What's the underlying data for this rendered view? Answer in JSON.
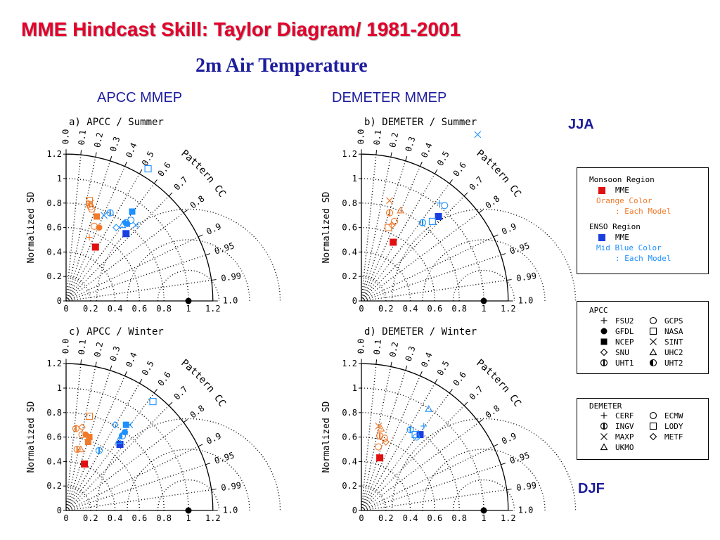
{
  "slide": {
    "title": "MME Hindcast Skill: Taylor Diagram/ 1981-2001",
    "subtitle": "2m Air Temperature",
    "column_left": "APCC MMEP",
    "column_right": "DEMETER MMEP",
    "season_top": "JJA",
    "season_bottom": "DJF"
  },
  "colors": {
    "title_red": "#e4002b",
    "heading_blue": "#1d1d9e",
    "mme_monsoon": "#e01010",
    "mme_enso": "#1a3ee0",
    "orange": "#f07a2a",
    "mid_blue": "#1e90ff"
  },
  "legend_region": {
    "monsoon_title": "Monsoon Region",
    "monsoon_mme": "MME",
    "monsoon_color_1": "Orange Color",
    "monsoon_color_2": ": Each Model",
    "enso_title": "ENSO Region",
    "enso_mme": "MME",
    "enso_color_1": "Mid Blue Color",
    "enso_color_2": ": Each Model"
  },
  "legend_apcc": {
    "title": "APCC",
    "items": [
      {
        "label": "FSU2",
        "symbol": "plus"
      },
      {
        "label": "GCPS",
        "symbol": "circle"
      },
      {
        "label": "GFDL",
        "symbol": "circle-filled"
      },
      {
        "label": "NASA",
        "symbol": "square"
      },
      {
        "label": "NCEP",
        "symbol": "square-filled"
      },
      {
        "label": "SINT",
        "symbol": "x"
      },
      {
        "label": "SNU",
        "symbol": "diamond"
      },
      {
        "label": "UHC2",
        "symbol": "triangle"
      },
      {
        "label": "UHT1",
        "symbol": "circle-bar"
      },
      {
        "label": "UHT2",
        "symbol": "circle-half"
      }
    ]
  },
  "legend_demeter": {
    "title": "DEMETER",
    "items": [
      {
        "label": "CERF",
        "symbol": "plus"
      },
      {
        "label": "ECMW",
        "symbol": "circle"
      },
      {
        "label": "INGV",
        "symbol": "circle-bar"
      },
      {
        "label": "LODY",
        "symbol": "square"
      },
      {
        "label": "MAXP",
        "symbol": "x"
      },
      {
        "label": "METF",
        "symbol": "diamond"
      },
      {
        "label": "UKMO",
        "symbol": "triangle"
      }
    ]
  },
  "chart_data": [
    {
      "type": "scatter",
      "title": "a) APCC / Summer",
      "ylabel": "Normalized SD",
      "correlation_label": "Pattern CC",
      "x_ticks": [
        "0",
        "0.2",
        "0.4",
        "0.6",
        "0.8",
        "1",
        "1.2"
      ],
      "y_ticks": [
        "0",
        "0.2",
        "0.4",
        "0.6",
        "0.8",
        "1",
        "1.2"
      ],
      "cc_ticks": [
        "0.0",
        "0.1",
        "0.2",
        "0.3",
        "0.4",
        "0.5",
        "0.6",
        "0.7",
        "0.8",
        "0.9",
        "0.95",
        "0.99",
        "1.0"
      ],
      "sd_range": [
        0,
        1.2
      ],
      "series": [
        {
          "name": "Monsoon Region MME",
          "color": "mme_monsoon",
          "points": [
            {
              "x": 0.24,
              "y": 0.44,
              "symbol": "square-filled"
            }
          ]
        },
        {
          "name": "Monsoon Region models",
          "color": "orange",
          "points": [
            {
              "x": 0.19,
              "y": 0.82,
              "symbol": "square"
            },
            {
              "x": 0.19,
              "y": 0.79,
              "symbol": "circle-bar"
            },
            {
              "x": 0.2,
              "y": 0.77,
              "symbol": "circle"
            },
            {
              "x": 0.21,
              "y": 0.75,
              "symbol": "circle"
            },
            {
              "x": 0.25,
              "y": 0.69,
              "symbol": "square-filled"
            },
            {
              "x": 0.27,
              "y": 0.6,
              "symbol": "circle-filled"
            },
            {
              "x": 0.23,
              "y": 0.61,
              "symbol": "circle"
            },
            {
              "x": 0.19,
              "y": 0.52,
              "symbol": "plus"
            },
            {
              "x": 0.2,
              "y": 0.8,
              "symbol": "x"
            }
          ]
        },
        {
          "name": "ENSO Region MME",
          "color": "mme_enso",
          "points": [
            {
              "x": 0.49,
              "y": 0.55,
              "symbol": "square-filled"
            }
          ]
        },
        {
          "name": "ENSO Region models",
          "color": "mid_blue",
          "points": [
            {
              "x": 0.67,
              "y": 1.08,
              "symbol": "square"
            },
            {
              "x": 0.36,
              "y": 0.72,
              "symbol": "circle-bar"
            },
            {
              "x": 0.31,
              "y": 0.7,
              "symbol": "x"
            },
            {
              "x": 0.54,
              "y": 0.73,
              "symbol": "square-filled"
            },
            {
              "x": 0.46,
              "y": 0.62,
              "symbol": "triangle"
            },
            {
              "x": 0.53,
              "y": 0.66,
              "symbol": "circle"
            },
            {
              "x": 0.5,
              "y": 0.63,
              "symbol": "circle-filled"
            },
            {
              "x": 0.41,
              "y": 0.6,
              "symbol": "diamond"
            },
            {
              "x": 0.57,
              "y": 0.62,
              "symbol": "x"
            },
            {
              "x": 0.49,
              "y": 0.64,
              "symbol": "circle-half"
            }
          ]
        }
      ]
    },
    {
      "type": "scatter",
      "title": "b) DEMETER / Summer",
      "ylabel": "Normalized SD",
      "correlation_label": "Pattern CC",
      "x_ticks": [
        "0",
        "0.2",
        "0.4",
        "0.6",
        "0.8",
        "1",
        "1.2"
      ],
      "y_ticks": [
        "0",
        "0.2",
        "0.4",
        "0.6",
        "0.8",
        "1",
        "1.2"
      ],
      "cc_ticks": [
        "0.0",
        "0.1",
        "0.2",
        "0.3",
        "0.4",
        "0.5",
        "0.6",
        "0.7",
        "0.8",
        "0.9",
        "0.95",
        "0.99",
        "1.0"
      ],
      "sd_range": [
        0,
        1.2
      ],
      "series": [
        {
          "name": "Monsoon Region MME",
          "color": "mme_monsoon",
          "points": [
            {
              "x": 0.26,
              "y": 0.48,
              "symbol": "square-filled"
            }
          ]
        },
        {
          "name": "Monsoon Region models",
          "color": "orange",
          "points": [
            {
              "x": 0.23,
              "y": 0.82,
              "symbol": "x"
            },
            {
              "x": 0.23,
              "y": 0.72,
              "symbol": "circle-bar"
            },
            {
              "x": 0.32,
              "y": 0.74,
              "symbol": "triangle"
            },
            {
              "x": 0.27,
              "y": 0.65,
              "symbol": "circle"
            },
            {
              "x": 0.25,
              "y": 0.62,
              "symbol": "diamond"
            },
            {
              "x": 0.22,
              "y": 0.6,
              "symbol": "square"
            }
          ]
        },
        {
          "name": "ENSO Region MME",
          "color": "mme_enso",
          "points": [
            {
              "x": 0.63,
              "y": 0.69,
              "symbol": "square-filled"
            }
          ]
        },
        {
          "name": "ENSO Region models",
          "color": "mid_blue",
          "points": [
            {
              "x": 0.95,
              "y": 1.36,
              "symbol": "x"
            },
            {
              "x": 0.64,
              "y": 0.8,
              "symbol": "plus"
            },
            {
              "x": 0.68,
              "y": 0.78,
              "symbol": "circle"
            },
            {
              "x": 0.58,
              "y": 0.65,
              "symbol": "square"
            },
            {
              "x": 0.5,
              "y": 0.64,
              "symbol": "circle-bar"
            }
          ]
        }
      ]
    },
    {
      "type": "scatter",
      "title": "c) APCC / Winter",
      "ylabel": "Normalized SD",
      "correlation_label": "Pattern CC",
      "x_ticks": [
        "0",
        "0.2",
        "0.4",
        "0.6",
        "0.8",
        "1",
        "1.2"
      ],
      "y_ticks": [
        "0",
        "0.2",
        "0.4",
        "0.6",
        "0.8",
        "1",
        "1.2"
      ],
      "cc_ticks": [
        "0.0",
        "0.1",
        "0.2",
        "0.3",
        "0.4",
        "0.5",
        "0.6",
        "0.7",
        "0.8",
        "0.9",
        "0.95",
        "0.99",
        "1.0"
      ],
      "sd_range": [
        0,
        1.2
      ],
      "series": [
        {
          "name": "Monsoon Region MME",
          "color": "mme_monsoon",
          "points": [
            {
              "x": 0.15,
              "y": 0.38,
              "symbol": "square-filled"
            }
          ]
        },
        {
          "name": "Monsoon Region models",
          "color": "orange",
          "points": [
            {
              "x": 0.19,
              "y": 0.77,
              "symbol": "square"
            },
            {
              "x": 0.13,
              "y": 0.68,
              "symbol": "diamond"
            },
            {
              "x": 0.08,
              "y": 0.67,
              "symbol": "circle-bar"
            },
            {
              "x": 0.13,
              "y": 0.62,
              "symbol": "circle"
            },
            {
              "x": 0.16,
              "y": 0.62,
              "symbol": "circle-filled"
            },
            {
              "x": 0.19,
              "y": 0.6,
              "symbol": "square-filled"
            },
            {
              "x": 0.18,
              "y": 0.56,
              "symbol": "square-filled"
            },
            {
              "x": 0.09,
              "y": 0.5,
              "symbol": "circle-bar"
            },
            {
              "x": 0.12,
              "y": 0.5,
              "symbol": "triangle"
            }
          ]
        },
        {
          "name": "ENSO Region MME",
          "color": "mme_enso",
          "points": [
            {
              "x": 0.44,
              "y": 0.54,
              "symbol": "square-filled"
            }
          ]
        },
        {
          "name": "ENSO Region models",
          "color": "mid_blue",
          "points": [
            {
              "x": 0.71,
              "y": 0.89,
              "symbol": "square"
            },
            {
              "x": 0.49,
              "y": 0.7,
              "symbol": "square-filled"
            },
            {
              "x": 0.48,
              "y": 0.64,
              "symbol": "circle-filled"
            },
            {
              "x": 0.46,
              "y": 0.61,
              "symbol": "circle-half"
            },
            {
              "x": 0.52,
              "y": 0.7,
              "symbol": "x"
            },
            {
              "x": 0.4,
              "y": 0.7,
              "symbol": "diamond"
            },
            {
              "x": 0.43,
              "y": 0.57,
              "symbol": "triangle"
            },
            {
              "x": 0.27,
              "y": 0.49,
              "symbol": "circle-bar"
            }
          ]
        }
      ]
    },
    {
      "type": "scatter",
      "title": "d) DEMETER / Winter",
      "ylabel": "Normalized SD",
      "correlation_label": "Pattern CC",
      "x_ticks": [
        "0",
        "0.2",
        "0.4",
        "0.6",
        "0.8",
        "1",
        "1.2"
      ],
      "y_ticks": [
        "0",
        "0.2",
        "0.4",
        "0.6",
        "0.8",
        "1",
        "1.2"
      ],
      "cc_ticks": [
        "0.0",
        "0.1",
        "0.2",
        "0.3",
        "0.4",
        "0.5",
        "0.6",
        "0.7",
        "0.8",
        "0.9",
        "0.95",
        "0.99",
        "1.0"
      ],
      "sd_range": [
        0,
        1.2
      ],
      "series": [
        {
          "name": "Monsoon Region MME",
          "color": "mme_monsoon",
          "points": [
            {
              "x": 0.15,
              "y": 0.43,
              "symbol": "square-filled"
            }
          ]
        },
        {
          "name": "Monsoon Region models",
          "color": "orange",
          "points": [
            {
              "x": 0.14,
              "y": 0.69,
              "symbol": "x"
            },
            {
              "x": 0.16,
              "y": 0.67,
              "symbol": "triangle"
            },
            {
              "x": 0.15,
              "y": 0.61,
              "symbol": "circle-bar"
            },
            {
              "x": 0.19,
              "y": 0.59,
              "symbol": "circle"
            },
            {
              "x": 0.2,
              "y": 0.56,
              "symbol": "diamond"
            },
            {
              "x": 0.14,
              "y": 0.52,
              "symbol": "circle"
            }
          ]
        },
        {
          "name": "ENSO Region MME",
          "color": "mme_enso",
          "points": [
            {
              "x": 0.48,
              "y": 0.62,
              "symbol": "square-filled"
            }
          ]
        },
        {
          "name": "ENSO Region models",
          "color": "mid_blue",
          "points": [
            {
              "x": 0.55,
              "y": 0.83,
              "symbol": "triangle"
            },
            {
              "x": 0.51,
              "y": 0.69,
              "symbol": "plus"
            },
            {
              "x": 0.44,
              "y": 0.62,
              "symbol": "square"
            },
            {
              "x": 0.45,
              "y": 0.6,
              "symbol": "circle"
            },
            {
              "x": 0.4,
              "y": 0.66,
              "symbol": "circle-bar"
            }
          ]
        }
      ]
    }
  ]
}
